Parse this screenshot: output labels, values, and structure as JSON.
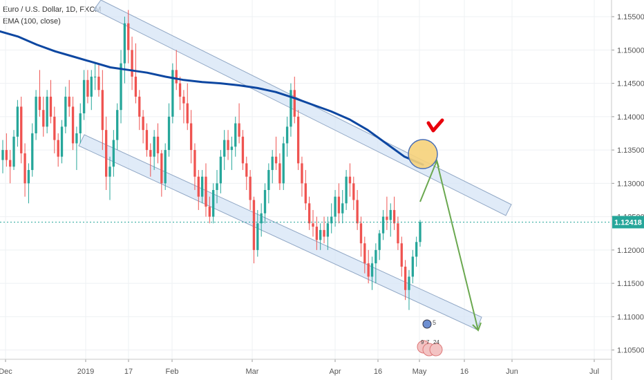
{
  "legend": {
    "symbol": "Euro / U.S. Dollar, 1D, FXCM",
    "indicator": "EMA (100, close)"
  },
  "last_price_label": "1.12418",
  "event_marks": [
    "5",
    "9",
    "7",
    "24"
  ],
  "colors": {
    "up": "#26a69a",
    "down": "#ef5350",
    "ema": "#0d47a1",
    "channel_fill": "#d6e4f5",
    "channel_stroke": "#8fa6c4",
    "arrow": "#6aa84f",
    "circle_fill": "#f6d27a",
    "check": "#e8000b",
    "price_line": "#26a69a"
  },
  "chart_data": {
    "type": "candlestick",
    "title": "Euro / U.S. Dollar, 1D, FXCM",
    "xlabel": "",
    "ylabel": "",
    "ylim": [
      1.1005,
      1.1575
    ],
    "y_ticks": [
      "1.15500",
      "1.15000",
      "1.14500",
      "1.14000",
      "1.13500",
      "1.13000",
      "1.12500",
      "1.12000",
      "1.11500",
      "1.11000",
      "1.10500"
    ],
    "x_ticks": [
      "Dec",
      "2019",
      "17",
      "Feb",
      "Mar",
      "Apr",
      "16",
      "May",
      "16",
      "Jun",
      "Jul"
    ],
    "last_price": 1.12418,
    "series": [
      {
        "name": "EMA (100, close)",
        "values": [
          1.1528,
          1.152,
          1.1508,
          1.1498,
          1.149,
          1.1482,
          1.1474,
          1.147,
          1.1466,
          1.146,
          1.1455,
          1.1452,
          1.145,
          1.1447,
          1.1443,
          1.1437,
          1.1428,
          1.1418,
          1.1408,
          1.1396,
          1.138,
          1.136,
          1.134,
          1.1328
        ]
      }
    ],
    "candles": [
      [
        1.1335,
        1.1365,
        1.1315,
        1.135
      ],
      [
        1.135,
        1.1375,
        1.1325,
        1.1335
      ],
      [
        1.1335,
        1.135,
        1.13,
        1.1325
      ],
      [
        1.1325,
        1.138,
        1.132,
        1.137
      ],
      [
        1.137,
        1.1425,
        1.1355,
        1.1415
      ],
      [
        1.1415,
        1.143,
        1.133,
        1.1345
      ],
      [
        1.1345,
        1.136,
        1.128,
        1.13
      ],
      [
        1.13,
        1.133,
        1.127,
        1.132
      ],
      [
        1.132,
        1.139,
        1.131,
        1.1375
      ],
      [
        1.1375,
        1.144,
        1.1365,
        1.143
      ],
      [
        1.143,
        1.147,
        1.14,
        1.141
      ],
      [
        1.141,
        1.143,
        1.137,
        1.1385
      ],
      [
        1.1385,
        1.144,
        1.1375,
        1.143
      ],
      [
        1.143,
        1.1455,
        1.139,
        1.14
      ],
      [
        1.14,
        1.1415,
        1.1345,
        1.1365
      ],
      [
        1.1365,
        1.1375,
        1.1325,
        1.134
      ],
      [
        1.134,
        1.1395,
        1.133,
        1.1385
      ],
      [
        1.1385,
        1.1445,
        1.1375,
        1.143
      ],
      [
        1.143,
        1.1455,
        1.14,
        1.1415
      ],
      [
        1.1415,
        1.143,
        1.135,
        1.136
      ],
      [
        1.136,
        1.1385,
        1.132,
        1.1375
      ],
      [
        1.1375,
        1.142,
        1.136,
        1.1405
      ],
      [
        1.1405,
        1.147,
        1.1395,
        1.1455
      ],
      [
        1.1455,
        1.147,
        1.142,
        1.143
      ],
      [
        1.143,
        1.147,
        1.141,
        1.146
      ],
      [
        1.146,
        1.148,
        1.144,
        1.146
      ],
      [
        1.146,
        1.148,
        1.143,
        1.144
      ],
      [
        1.144,
        1.147,
        1.135,
        1.138
      ],
      [
        1.138,
        1.14,
        1.129,
        1.131
      ],
      [
        1.131,
        1.134,
        1.1275,
        1.1325
      ],
      [
        1.1325,
        1.138,
        1.131,
        1.1365
      ],
      [
        1.1365,
        1.142,
        1.135,
        1.141
      ],
      [
        1.141,
        1.15,
        1.139,
        1.148
      ],
      [
        1.148,
        1.155,
        1.145,
        1.154
      ],
      [
        1.154,
        1.156,
        1.148,
        1.15
      ],
      [
        1.15,
        1.152,
        1.144,
        1.146
      ],
      [
        1.146,
        1.151,
        1.142,
        1.143
      ],
      [
        1.143,
        1.144,
        1.138,
        1.14
      ],
      [
        1.14,
        1.141,
        1.136,
        1.138
      ],
      [
        1.138,
        1.139,
        1.134,
        1.135
      ],
      [
        1.135,
        1.136,
        1.131,
        1.134
      ],
      [
        1.134,
        1.138,
        1.132,
        1.137
      ],
      [
        1.137,
        1.139,
        1.133,
        1.1345
      ],
      [
        1.1345,
        1.135,
        1.128,
        1.13
      ],
      [
        1.13,
        1.136,
        1.129,
        1.135
      ],
      [
        1.135,
        1.142,
        1.134,
        1.14
      ],
      [
        1.14,
        1.148,
        1.139,
        1.147
      ],
      [
        1.147,
        1.15,
        1.144,
        1.145
      ],
      [
        1.145,
        1.146,
        1.141,
        1.143
      ],
      [
        1.143,
        1.144,
        1.139,
        1.142
      ],
      [
        1.142,
        1.145,
        1.138,
        1.139
      ],
      [
        1.139,
        1.141,
        1.133,
        1.135
      ],
      [
        1.135,
        1.136,
        1.129,
        1.131
      ],
      [
        1.131,
        1.132,
        1.126,
        1.128
      ],
      [
        1.128,
        1.132,
        1.127,
        1.131
      ],
      [
        1.131,
        1.133,
        1.125,
        1.1265
      ],
      [
        1.1265,
        1.128,
        1.124,
        1.125
      ],
      [
        1.125,
        1.13,
        1.124,
        1.129
      ],
      [
        1.129,
        1.132,
        1.127,
        1.13
      ],
      [
        1.13,
        1.135,
        1.1285,
        1.134
      ],
      [
        1.134,
        1.138,
        1.132,
        1.1365
      ],
      [
        1.1365,
        1.138,
        1.1335,
        1.135
      ],
      [
        1.135,
        1.137,
        1.132,
        1.1355
      ],
      [
        1.1355,
        1.14,
        1.134,
        1.139
      ],
      [
        1.139,
        1.142,
        1.136,
        1.137
      ],
      [
        1.137,
        1.138,
        1.132,
        1.133
      ],
      [
        1.133,
        1.134,
        1.129,
        1.131
      ],
      [
        1.131,
        1.132,
        1.126,
        1.1275
      ],
      [
        1.1275,
        1.128,
        1.118,
        1.12
      ],
      [
        1.12,
        1.126,
        1.119,
        1.124
      ],
      [
        1.124,
        1.127,
        1.122,
        1.1255
      ],
      [
        1.1255,
        1.13,
        1.124,
        1.129
      ],
      [
        1.129,
        1.133,
        1.127,
        1.132
      ],
      [
        1.132,
        1.135,
        1.13,
        1.134
      ],
      [
        1.134,
        1.137,
        1.132,
        1.133
      ],
      [
        1.133,
        1.1345,
        1.129,
        1.13
      ],
      [
        1.13,
        1.137,
        1.129,
        1.136
      ],
      [
        1.136,
        1.14,
        1.134,
        1.1385
      ],
      [
        1.1385,
        1.145,
        1.137,
        1.144
      ],
      [
        1.144,
        1.146,
        1.139,
        1.14
      ],
      [
        1.14,
        1.141,
        1.132,
        1.133
      ],
      [
        1.133,
        1.134,
        1.128,
        1.13
      ],
      [
        1.13,
        1.132,
        1.126,
        1.127
      ],
      [
        1.127,
        1.128,
        1.123,
        1.124
      ],
      [
        1.124,
        1.126,
        1.122,
        1.1235
      ],
      [
        1.1235,
        1.125,
        1.12,
        1.1215
      ],
      [
        1.1215,
        1.124,
        1.12,
        1.123
      ],
      [
        1.123,
        1.125,
        1.121,
        1.122
      ],
      [
        1.122,
        1.125,
        1.12,
        1.124
      ],
      [
        1.124,
        1.127,
        1.1225,
        1.125
      ],
      [
        1.125,
        1.129,
        1.1235,
        1.128
      ],
      [
        1.128,
        1.13,
        1.124,
        1.1255
      ],
      [
        1.1255,
        1.129,
        1.124,
        1.127
      ],
      [
        1.127,
        1.132,
        1.126,
        1.131
      ],
      [
        1.131,
        1.133,
        1.128,
        1.13
      ],
      [
        1.13,
        1.131,
        1.126,
        1.1275
      ],
      [
        1.1275,
        1.129,
        1.123,
        1.124
      ],
      [
        1.124,
        1.125,
        1.119,
        1.121
      ],
      [
        1.121,
        1.122,
        1.1165,
        1.118
      ],
      [
        1.118,
        1.12,
        1.115,
        1.116
      ],
      [
        1.116,
        1.119,
        1.114,
        1.118
      ],
      [
        1.118,
        1.121,
        1.115,
        1.12
      ],
      [
        1.12,
        1.123,
        1.1185,
        1.1225
      ],
      [
        1.1225,
        1.126,
        1.1215,
        1.125
      ],
      [
        1.125,
        1.128,
        1.123,
        1.1245
      ],
      [
        1.1245,
        1.127,
        1.122,
        1.126
      ],
      [
        1.126,
        1.128,
        1.123,
        1.124
      ],
      [
        1.124,
        1.125,
        1.12,
        1.121
      ],
      [
        1.121,
        1.122,
        1.116,
        1.1175
      ],
      [
        1.1175,
        1.1185,
        1.1125,
        1.114
      ],
      [
        1.114,
        1.117,
        1.111,
        1.116
      ],
      [
        1.116,
        1.12,
        1.115,
        1.119
      ],
      [
        1.119,
        1.122,
        1.1175,
        1.1212
      ],
      [
        1.1212,
        1.1245,
        1.1205,
        1.1242
      ]
    ]
  }
}
